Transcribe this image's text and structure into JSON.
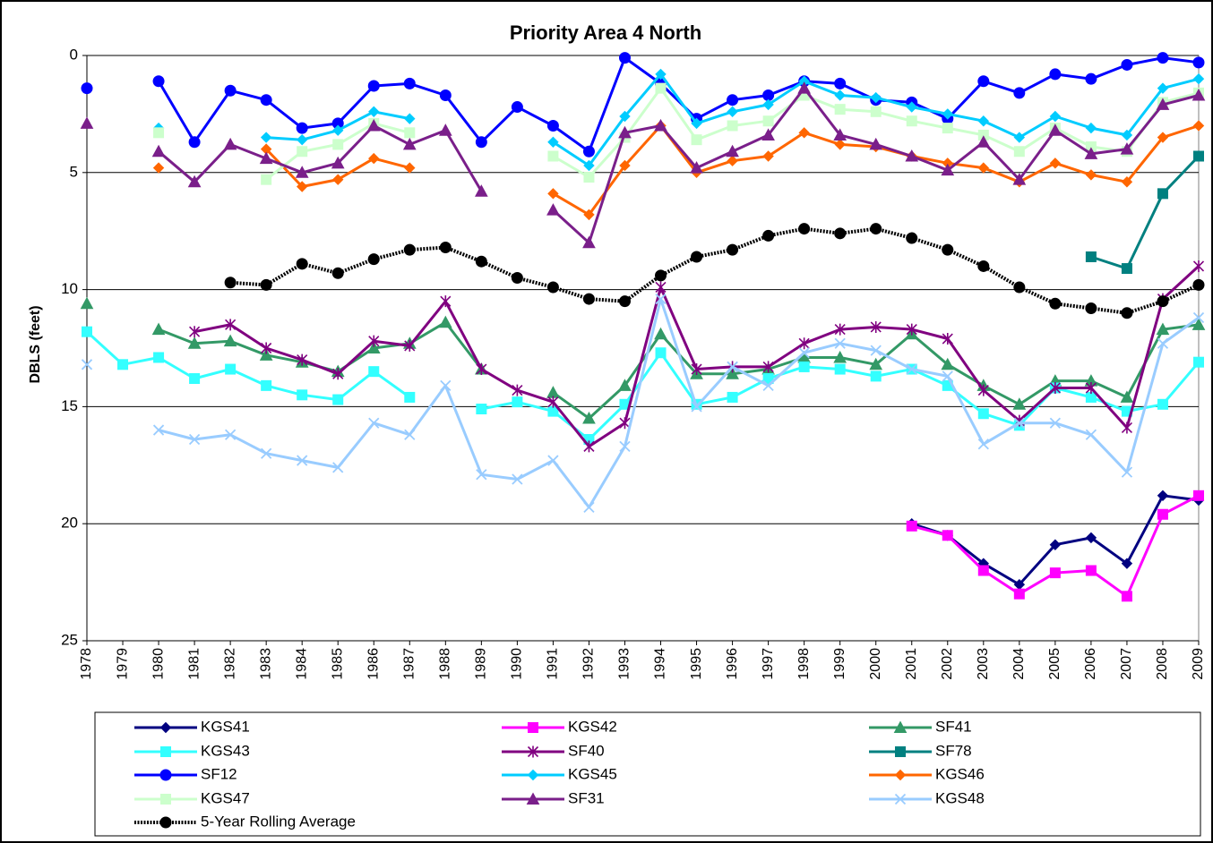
{
  "chart_data": {
    "type": "line",
    "title": "Priority Area 4 North",
    "y_label": "DBLS (feet)",
    "x": [
      1978,
      1979,
      1980,
      1981,
      1982,
      1983,
      1984,
      1985,
      1986,
      1987,
      1988,
      1989,
      1990,
      1991,
      1992,
      1993,
      1994,
      1995,
      1996,
      1997,
      1998,
      1999,
      2000,
      2001,
      2002,
      2003,
      2004,
      2005,
      2006,
      2007,
      2008,
      2009
    ],
    "xlim": [
      1978,
      2009
    ],
    "ylim": [
      0,
      25
    ],
    "yticks": [
      0,
      5,
      10,
      15,
      20,
      25
    ],
    "y_inverted": true,
    "grid": true,
    "legend": "bottom",
    "series": [
      {
        "name": "KGS41",
        "color": "#000080",
        "marker": "diamond",
        "values": [
          null,
          null,
          null,
          null,
          null,
          null,
          null,
          null,
          null,
          null,
          null,
          null,
          null,
          null,
          null,
          null,
          null,
          null,
          null,
          null,
          null,
          null,
          null,
          20.0,
          20.5,
          21.7,
          22.6,
          20.9,
          20.6,
          21.7,
          18.8,
          19.0
        ]
      },
      {
        "name": "KGS42",
        "color": "#ff00ff",
        "marker": "square",
        "values": [
          null,
          null,
          null,
          null,
          null,
          null,
          null,
          null,
          null,
          null,
          null,
          null,
          null,
          null,
          null,
          null,
          null,
          null,
          null,
          null,
          null,
          null,
          null,
          20.1,
          20.5,
          22.0,
          23.0,
          22.1,
          22.0,
          23.1,
          19.6,
          18.8
        ]
      },
      {
        "name": "SF41",
        "color": "#339966",
        "marker": "triangle",
        "values": [
          10.6,
          null,
          11.7,
          12.3,
          12.2,
          12.8,
          13.1,
          13.5,
          12.5,
          12.3,
          11.4,
          13.4,
          null,
          14.4,
          15.5,
          14.1,
          11.9,
          13.6,
          13.6,
          13.4,
          12.9,
          12.9,
          13.2,
          11.9,
          13.2,
          14.1,
          14.9,
          13.9,
          13.9,
          14.6,
          11.7,
          11.5
        ]
      },
      {
        "name": "KGS43",
        "color": "#33ffff",
        "marker": "square",
        "values": [
          11.8,
          13.2,
          12.9,
          13.8,
          13.4,
          14.1,
          14.5,
          14.7,
          13.5,
          14.6,
          null,
          15.1,
          14.8,
          15.2,
          16.4,
          14.9,
          12.7,
          14.9,
          14.6,
          13.8,
          13.3,
          13.4,
          13.7,
          13.4,
          14.1,
          15.3,
          15.8,
          14.2,
          14.6,
          15.2,
          14.9,
          13.1
        ]
      },
      {
        "name": "SF40",
        "color": "#800080",
        "marker": "star",
        "values": [
          null,
          null,
          null,
          11.8,
          11.5,
          12.5,
          13.0,
          13.6,
          12.2,
          12.4,
          10.5,
          13.4,
          14.3,
          14.8,
          16.7,
          15.7,
          9.9,
          13.4,
          13.3,
          13.3,
          12.3,
          11.7,
          11.6,
          11.7,
          12.1,
          14.3,
          15.6,
          14.2,
          14.2,
          15.9,
          10.4,
          9.0
        ]
      },
      {
        "name": "SF78",
        "color": "#008080",
        "marker": "square",
        "values": [
          null,
          null,
          null,
          null,
          null,
          null,
          null,
          null,
          null,
          null,
          null,
          null,
          null,
          null,
          null,
          null,
          null,
          null,
          null,
          null,
          null,
          null,
          null,
          null,
          null,
          null,
          null,
          null,
          8.6,
          9.1,
          5.9,
          4.3
        ]
      },
      {
        "name": "SF12",
        "color": "#0000ff",
        "marker": "circle",
        "values": [
          1.4,
          null,
          1.1,
          3.7,
          1.5,
          1.9,
          3.1,
          2.9,
          1.3,
          1.2,
          1.7,
          3.7,
          2.2,
          3.0,
          4.1,
          0.1,
          1.2,
          2.7,
          1.9,
          1.7,
          1.1,
          1.2,
          1.9,
          2.0,
          2.7,
          1.1,
          1.6,
          0.8,
          1.0,
          0.4,
          0.1,
          0.3
        ]
      },
      {
        "name": "KGS45",
        "color": "#00ccff",
        "marker": "diamond",
        "values": [
          null,
          null,
          3.1,
          null,
          null,
          3.5,
          3.6,
          3.2,
          2.4,
          2.7,
          null,
          null,
          null,
          3.7,
          4.7,
          2.6,
          0.8,
          2.9,
          2.4,
          2.1,
          1.1,
          1.7,
          1.8,
          2.2,
          2.5,
          2.8,
          3.5,
          2.6,
          3.1,
          3.4,
          1.4,
          1.0
        ]
      },
      {
        "name": "KGS46",
        "color": "#ff6600",
        "marker": "diamond",
        "values": [
          null,
          null,
          4.8,
          null,
          null,
          4.0,
          5.6,
          5.3,
          4.4,
          4.8,
          null,
          null,
          null,
          5.9,
          6.8,
          4.7,
          3.0,
          5.0,
          4.5,
          4.3,
          3.3,
          3.8,
          3.9,
          4.3,
          4.6,
          4.8,
          5.4,
          4.6,
          5.1,
          5.4,
          3.5,
          3.0
        ]
      },
      {
        "name": "KGS47",
        "color": "#ccffcc",
        "marker": "square",
        "values": [
          null,
          null,
          3.3,
          null,
          null,
          5.3,
          4.1,
          3.8,
          2.9,
          3.3,
          null,
          null,
          null,
          4.3,
          5.2,
          3.5,
          1.4,
          3.6,
          3.0,
          2.8,
          1.7,
          2.3,
          2.4,
          2.8,
          3.1,
          3.4,
          4.1,
          3.1,
          3.9,
          4.1,
          2.0,
          1.6
        ]
      },
      {
        "name": "SF31",
        "color": "#7a1f8a",
        "marker": "triangle",
        "values": [
          2.9,
          null,
          4.1,
          5.4,
          3.8,
          4.4,
          5.0,
          4.6,
          3.0,
          3.8,
          3.2,
          5.8,
          null,
          6.6,
          8.0,
          3.3,
          3.0,
          4.8,
          4.1,
          3.4,
          1.4,
          3.4,
          3.8,
          4.3,
          4.9,
          3.7,
          5.3,
          3.2,
          4.2,
          4.0,
          2.1,
          1.7
        ]
      },
      {
        "name": "KGS48",
        "color": "#99ccff",
        "marker": "x",
        "values": [
          13.2,
          null,
          16.0,
          16.4,
          16.2,
          17.0,
          17.3,
          17.6,
          15.7,
          16.2,
          14.1,
          17.9,
          18.1,
          17.3,
          19.3,
          16.7,
          10.4,
          15.0,
          13.3,
          14.1,
          12.7,
          12.3,
          12.6,
          13.4,
          13.7,
          16.6,
          15.7,
          15.7,
          16.2,
          17.8,
          12.3,
          11.2
        ]
      },
      {
        "name": "5-Year Rolling Average",
        "color": "#000000",
        "marker": "circle",
        "line_style": "dotted",
        "values": [
          null,
          null,
          null,
          null,
          9.7,
          9.8,
          8.9,
          9.3,
          8.7,
          8.3,
          8.2,
          8.8,
          9.5,
          9.9,
          10.4,
          10.5,
          9.4,
          8.6,
          8.3,
          7.7,
          7.4,
          7.6,
          7.4,
          7.8,
          8.3,
          9.0,
          9.9,
          10.6,
          10.8,
          11.0,
          10.5,
          9.8
        ]
      }
    ]
  }
}
